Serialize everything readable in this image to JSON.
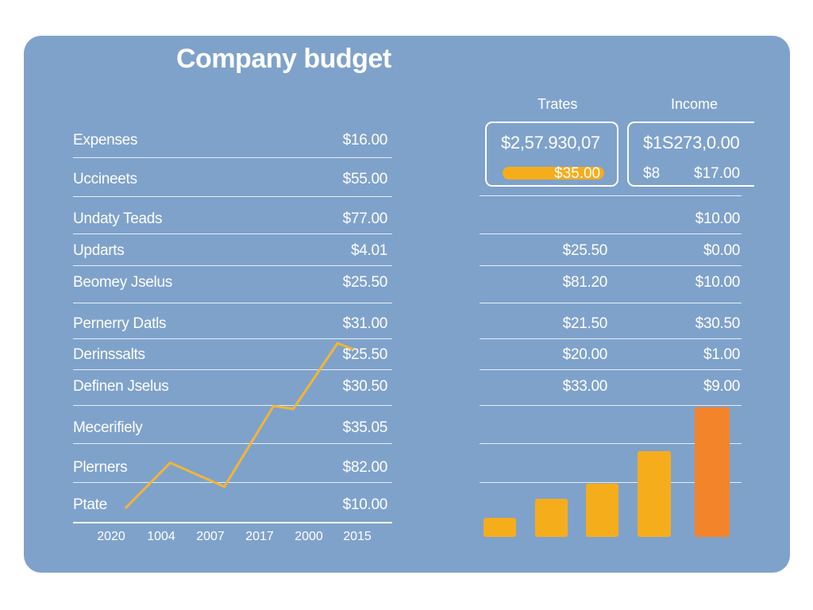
{
  "title": "Company budget",
  "colors": {
    "panel": "#7fa2cb",
    "line": "#f2b536",
    "bar_yellow": "#f6ad1b",
    "bar_orange": "#f4842a"
  },
  "left_table": {
    "rows": [
      {
        "name": "Expenses",
        "value": "$16.00"
      },
      {
        "name": "Uccineets",
        "value": "$55.00"
      },
      {
        "name": "Undaty Teads",
        "value": "$77.00"
      },
      {
        "name": "Updarts",
        "value": "$4.01"
      },
      {
        "name": "Beomey Jselus",
        "value": "$25.50"
      },
      {
        "name": "Pernerry Datls",
        "value": "$31.00"
      },
      {
        "name": "Derinssalts",
        "value": "$25.50"
      },
      {
        "name": "Definen Jselus",
        "value": "$30.50"
      },
      {
        "name": "Mecerifiely",
        "value": "$35.05"
      },
      {
        "name": "Plerners",
        "value": "$82.00"
      },
      {
        "name": "Ptate",
        "value": "$10.00"
      }
    ]
  },
  "right_table": {
    "headers": [
      "Trates",
      "Income"
    ],
    "box1": {
      "main": "$2,57.930,07",
      "sub": "$35.00"
    },
    "box2": {
      "main": "$1S273,0.00",
      "sub_left": "$8",
      "sub_right": "$17.00"
    },
    "rows": [
      {
        "trates": "",
        "income": "$10.00"
      },
      {
        "trates": "$25.50",
        "income": "$0.00"
      },
      {
        "trates": "$81.20",
        "income": "$10.00"
      },
      {
        "trates": "$21.50",
        "income": "$30.50"
      },
      {
        "trates": "$20.00",
        "income": "$1.00"
      },
      {
        "trates": "$33.00",
        "income": "$9.00"
      }
    ]
  },
  "chart_data": [
    {
      "type": "line",
      "x": [
        "2020",
        "1004",
        "2007",
        "2017",
        "2000",
        "2015"
      ],
      "points": [
        {
          "x": 0.3,
          "y": 0.5
        },
        {
          "x": 1.2,
          "y": 2.0
        },
        {
          "x": 2.3,
          "y": 1.2
        },
        {
          "x": 3.3,
          "y": 3.9
        },
        {
          "x": 3.7,
          "y": 3.8
        },
        {
          "x": 4.6,
          "y": 6.0
        },
        {
          "x": 4.9,
          "y": 5.8
        }
      ],
      "ylim": [
        0,
        7
      ],
      "grid": true
    },
    {
      "type": "bar",
      "values": [
        1.0,
        2.0,
        2.8,
        4.5,
        6.8
      ],
      "ylim": [
        0,
        7
      ],
      "colors": [
        "#f6ad1b",
        "#f6ad1b",
        "#f6ad1b",
        "#f6ad1b",
        "#f4842a"
      ]
    }
  ]
}
